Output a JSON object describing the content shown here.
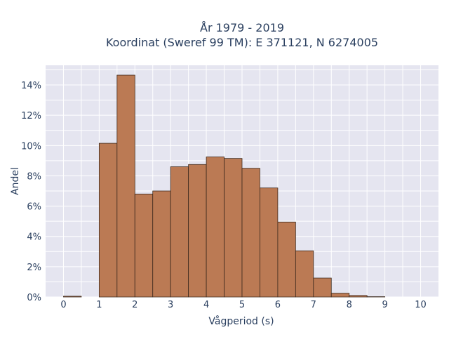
{
  "chart_data": {
    "type": "bar",
    "title_line1": "År 1979 - 2019",
    "title_line2": "Koordinat (Sweref 99 TM): E 371121, N 6274005",
    "xlabel": "Vågperiod (s)",
    "ylabel": "Andel",
    "bin_width": 0.5,
    "bin_starts": [
      0,
      0.5,
      1,
      1.5,
      2,
      2.5,
      3,
      3.5,
      4,
      4.5,
      5,
      5.5,
      6,
      6.5,
      7,
      7.5,
      8,
      8.5,
      9,
      9.5
    ],
    "values": [
      0.05,
      0,
      10.15,
      14.65,
      6.8,
      7.0,
      8.6,
      8.75,
      9.25,
      9.15,
      8.5,
      7.2,
      4.95,
      3.05,
      1.25,
      0.25,
      0.1,
      0.02,
      0,
      0
    ],
    "xlim": [
      -0.5,
      10.5
    ],
    "ylim": [
      0,
      15.3
    ],
    "x_ticks": [
      "0",
      "1",
      "2",
      "3",
      "4",
      "5",
      "6",
      "7",
      "8",
      "9",
      "10"
    ],
    "y_ticks": [
      "0%",
      "2%",
      "4%",
      "6%",
      "8%",
      "10%",
      "12%",
      "14%"
    ],
    "bar_color": "#bb7a54",
    "bar_edge_color": "#3d2a1e",
    "plot_bg": "#e5e5f0",
    "grid": true
  }
}
